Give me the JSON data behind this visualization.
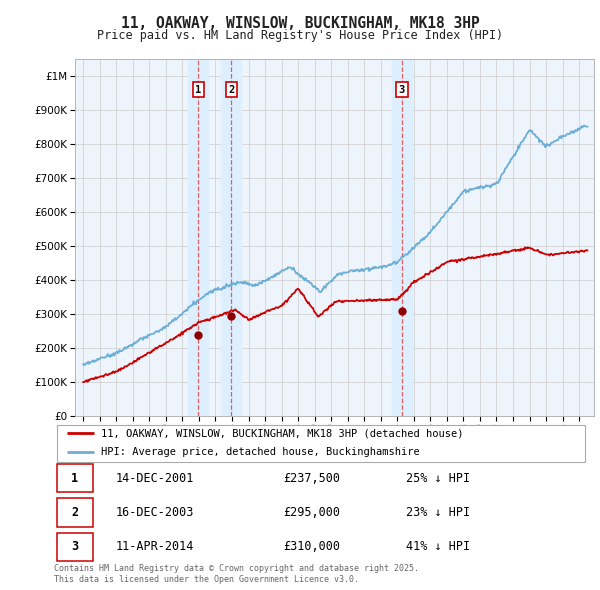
{
  "title": "11, OAKWAY, WINSLOW, BUCKINGHAM, MK18 3HP",
  "subtitle": "Price paid vs. HM Land Registry's House Price Index (HPI)",
  "hpi_label": "HPI: Average price, detached house, Buckinghamshire",
  "property_label": "11, OAKWAY, WINSLOW, BUCKINGHAM, MK18 3HP (detached house)",
  "footer_line1": "Contains HM Land Registry data © Crown copyright and database right 2025.",
  "footer_line2": "This data is licensed under the Open Government Licence v3.0.",
  "sales": [
    {
      "num": 1,
      "date": "14-DEC-2001",
      "price": 237500,
      "pct": "25%",
      "dir": "↓",
      "x_year": 2001.96
    },
    {
      "num": 2,
      "date": "16-DEC-2003",
      "price": 295000,
      "pct": "23%",
      "dir": "↓",
      "x_year": 2003.96
    },
    {
      "num": 3,
      "date": "11-APR-2014",
      "price": 310000,
      "pct": "41%",
      "dir": "↓",
      "x_year": 2014.28
    }
  ],
  "ylim": [
    0,
    1050000
  ],
  "yticks": [
    0,
    100000,
    200000,
    300000,
    400000,
    500000,
    600000,
    700000,
    800000,
    900000,
    1000000
  ],
  "ytick_labels": [
    "£0",
    "£100K",
    "£200K",
    "£300K",
    "£400K",
    "£500K",
    "£600K",
    "£700K",
    "£800K",
    "£900K",
    "£1M"
  ],
  "xlim": [
    1994.5,
    2025.9
  ],
  "hpi_color": "#6baed6",
  "property_color": "#cc0000",
  "sale_marker_color": "#8b0000",
  "vline_color": "#e06060",
  "vline_shade": "#ddeeff",
  "grid_color": "#cccccc",
  "chart_bg": "#eef4fb",
  "bg_color": "#ffffff",
  "box_color": "#cc0000",
  "legend_border": "#aaaaaa",
  "spine_color": "#aaaaaa"
}
